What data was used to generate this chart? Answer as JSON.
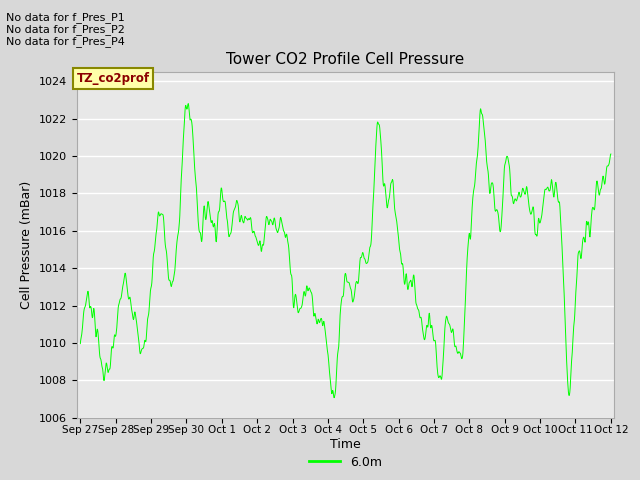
{
  "title": "Tower CO2 Profile Cell Pressure",
  "ylabel": "Cell Pressure (mBar)",
  "xlabel": "Time",
  "legend_label": "6.0m",
  "legend_label2": "TZ_co2prof",
  "ylim": [
    1006,
    1024.5
  ],
  "line_color": "#00ff00",
  "fig_bg_color": "#d8d8d8",
  "plot_bg": "#e8e8e8",
  "no_data_texts": [
    "No data for f_Pres_P1",
    "No data for f_Pres_P2",
    "No data for f_Pres_P4"
  ],
  "xtick_labels": [
    "Sep 27",
    "Sep 28",
    "Sep 29",
    "Sep 30",
    "Oct 1",
    "Oct 2",
    "Oct 3",
    "Oct 4",
    "Oct 5",
    "Oct 6",
    "Oct 7",
    "Oct 8",
    "Oct 9",
    "Oct 10",
    "Oct 11",
    "Oct 12"
  ],
  "ytick_vals": [
    1006,
    1008,
    1010,
    1012,
    1014,
    1016,
    1018,
    1020,
    1022,
    1024
  ],
  "seed": 42
}
